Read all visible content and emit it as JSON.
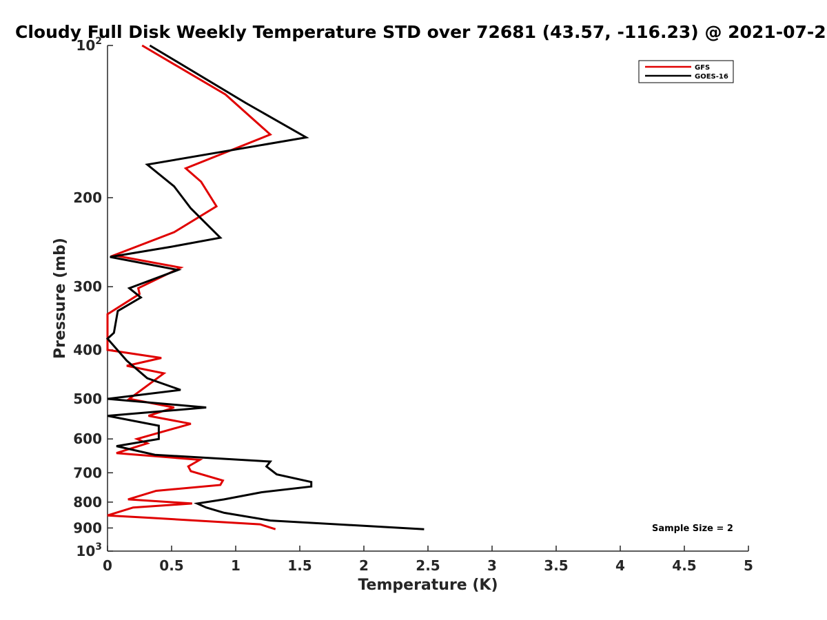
{
  "chart_data": {
    "type": "line",
    "title": "Cloudy Full Disk Weekly Temperature STD over 72681 (43.57, -116.23) @ 2021-07-2",
    "xlabel": "Temperature (K)",
    "ylabel": "Pressure (mb)",
    "xlim": [
      0,
      5
    ],
    "ylim": [
      100,
      1000
    ],
    "y_scale": "log",
    "y_reversed": true,
    "grid": false,
    "legend_position": "top-right",
    "x_ticks": [
      0,
      0.5,
      1,
      1.5,
      2,
      2.5,
      3,
      3.5,
      4,
      4.5,
      5
    ],
    "x_tick_labels": [
      "0",
      "0.5",
      "1",
      "1.5",
      "2",
      "2.5",
      "3",
      "3.5",
      "4",
      "4.5",
      "5"
    ],
    "y_ticks": [
      100,
      200,
      300,
      400,
      500,
      600,
      700,
      800,
      900,
      1000
    ],
    "y_tick_labels": [
      {
        "base": "10",
        "exp": "2"
      },
      {
        "base": "200",
        "exp": ""
      },
      {
        "base": "300",
        "exp": ""
      },
      {
        "base": "400",
        "exp": ""
      },
      {
        "base": "500",
        "exp": ""
      },
      {
        "base": "600",
        "exp": ""
      },
      {
        "base": "700",
        "exp": ""
      },
      {
        "base": "800",
        "exp": ""
      },
      {
        "base": "900",
        "exp": ""
      },
      {
        "base": "10",
        "exp": "3"
      }
    ],
    "annotation": "Sample Size = 2",
    "series": [
      {
        "name": "GFS",
        "color": "#e00000",
        "points": [
          [
            0.27,
            100
          ],
          [
            0.92,
            125
          ],
          [
            1.27,
            150
          ],
          [
            0.61,
            175
          ],
          [
            0.73,
            186
          ],
          [
            0.85,
            208
          ],
          [
            0.52,
            234
          ],
          [
            0.05,
            260
          ],
          [
            0.57,
            275
          ],
          [
            0.24,
            302
          ],
          [
            0.25,
            310
          ],
          [
            0.0,
            340
          ],
          [
            0.0,
            400
          ],
          [
            0.42,
            415
          ],
          [
            0.15,
            430
          ],
          [
            0.44,
            445
          ],
          [
            0.17,
            500
          ],
          [
            0.52,
            520
          ],
          [
            0.32,
            540
          ],
          [
            0.65,
            560
          ],
          [
            0.23,
            600
          ],
          [
            0.31,
            612
          ],
          [
            0.07,
            640
          ],
          [
            0.72,
            660
          ],
          [
            0.63,
            680
          ],
          [
            0.65,
            695
          ],
          [
            0.9,
            725
          ],
          [
            0.88,
            740
          ],
          [
            0.38,
            760
          ],
          [
            0.16,
            790
          ],
          [
            0.66,
            805
          ],
          [
            0.2,
            820
          ],
          [
            0.0,
            850
          ],
          [
            0.35,
            860
          ],
          [
            1.19,
            885
          ],
          [
            1.31,
            905
          ]
        ]
      },
      {
        "name": "GOES-16",
        "color": "#000000",
        "points": [
          [
            0.33,
            100
          ],
          [
            1.08,
            130
          ],
          [
            1.55,
            152
          ],
          [
            0.31,
            172
          ],
          [
            0.52,
            190
          ],
          [
            0.65,
            210
          ],
          [
            0.88,
            240
          ],
          [
            0.5,
            250
          ],
          [
            0.02,
            262
          ],
          [
            0.55,
            278
          ],
          [
            0.17,
            302
          ],
          [
            0.26,
            315
          ],
          [
            0.08,
            335
          ],
          [
            0.05,
            370
          ],
          [
            0.0,
            380
          ],
          [
            0.15,
            420
          ],
          [
            0.31,
            455
          ],
          [
            0.57,
            480
          ],
          [
            0.0,
            500
          ],
          [
            0.77,
            520
          ],
          [
            0.0,
            540
          ],
          [
            0.4,
            565
          ],
          [
            0.4,
            600
          ],
          [
            0.07,
            620
          ],
          [
            0.37,
            645
          ],
          [
            1.27,
            665
          ],
          [
            1.24,
            680
          ],
          [
            1.32,
            705
          ],
          [
            1.59,
            730
          ],
          [
            1.59,
            745
          ],
          [
            1.2,
            765
          ],
          [
            0.91,
            790
          ],
          [
            0.7,
            805
          ],
          [
            0.77,
            820
          ],
          [
            0.91,
            840
          ],
          [
            1.27,
            870
          ],
          [
            2.47,
            905
          ]
        ]
      }
    ]
  }
}
